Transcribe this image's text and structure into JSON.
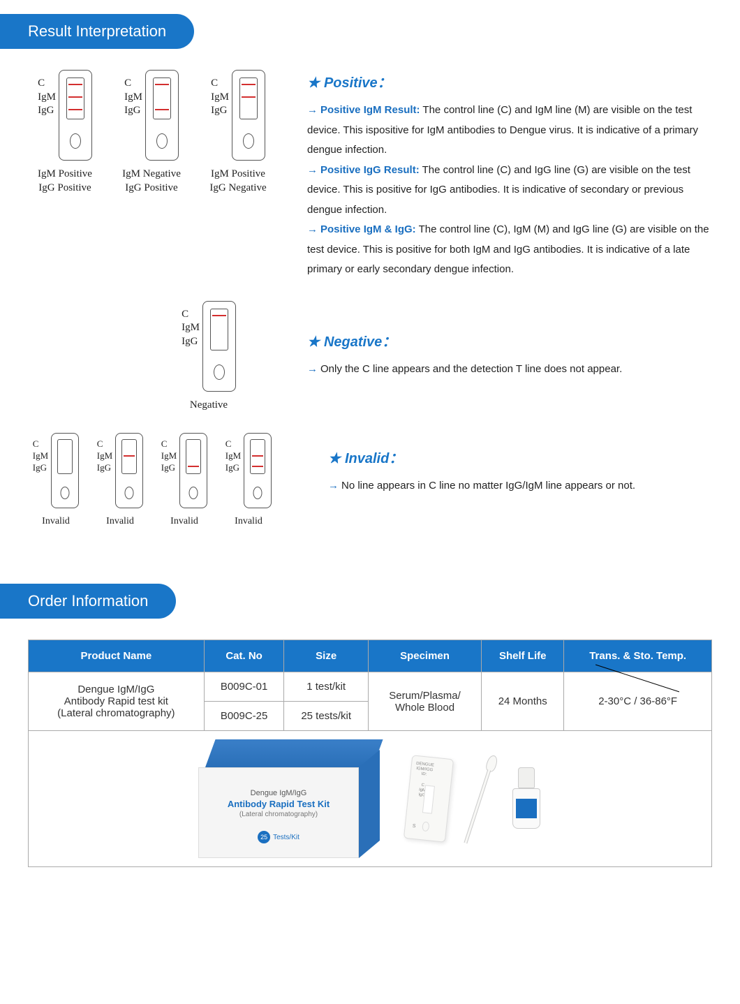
{
  "headers": {
    "result": "Result Interpretation",
    "order": "Order Information"
  },
  "lineLabels": {
    "c": "C",
    "igm": "IgM",
    "igg": "IgG"
  },
  "positive": {
    "title": "Positive：",
    "diagrams": [
      {
        "lines": [
          "C",
          "IgM",
          "IgG"
        ],
        "cap1": "IgM Positive",
        "cap2": "IgG Positive"
      },
      {
        "lines": [
          "C",
          "IgG"
        ],
        "cap1": "IgM Negative",
        "cap2": "IgG Positive"
      },
      {
        "lines": [
          "C",
          "IgM"
        ],
        "cap1": "IgM Positive",
        "cap2": "IgG Negative"
      }
    ],
    "items": [
      {
        "label": "Positive IgM Result:",
        "text": " The control line (C) and IgM line (M) are visible on the test device. This ispositive for IgM antibodies to Dengue virus. It is indicative of a primary dengue infection."
      },
      {
        "label": "Positive IgG Result:",
        "text": " The control line (C) and IgG line (G) are visible on the test device. This is positive for IgG antibodies. It is indicative of secondary or previous dengue infection."
      },
      {
        "label": "Positive IgM & IgG:",
        "text": " The control line (C), IgM (M) and IgG line (G) are visible on the test device. This is positive for both IgM and IgG antibodies. It is indicative of a late primary or early secondary dengue infection."
      }
    ]
  },
  "negative": {
    "title": "Negative：",
    "diagram": {
      "lines": [
        "C"
      ],
      "cap": "Negative"
    },
    "text": "Only the C line appears and the detection T line does not appear."
  },
  "invalid": {
    "title": "Invalid：",
    "text": "No line appears in C line no matter IgG/IgM line appears or not.",
    "diagrams": [
      {
        "lines": [],
        "cap": "Invalid"
      },
      {
        "lines": [
          "IgM"
        ],
        "cap": "Invalid"
      },
      {
        "lines": [
          "IgG"
        ],
        "cap": "Invalid"
      },
      {
        "lines": [
          "IgM",
          "IgG"
        ],
        "cap": "Invalid"
      }
    ]
  },
  "orderTable": {
    "columns": [
      "Product Name",
      "Cat. No",
      "Size",
      "Specimen",
      "Shelf Life",
      "Trans. & Sto. Temp."
    ],
    "productName": "Dengue IgM/IgG\nAntibody Rapid test kit\n(Lateral chromatography)",
    "rows": [
      {
        "cat": "B009C-01",
        "size": "1 test/kit"
      },
      {
        "cat": "B009C-25",
        "size": "25 tests/kit"
      }
    ],
    "specimen": "Serum/Plasma/\nWhole Blood",
    "shelf": "24 Months",
    "temp": "2-30°C / 36-86°F"
  },
  "kitBox": {
    "line1": "Dengue IgM/IgG",
    "line2": "Antibody Rapid Test Kit",
    "line3": "(Lateral chromatography)",
    "badgeNum": "25",
    "badgeText": "Tests/Kit"
  },
  "cassette": {
    "l1": "DENGUE",
    "l2": "IGM/IGG",
    "l3": "ID:",
    "s": "S"
  },
  "colors": {
    "primary": "#1976c8",
    "accent": "#1a6fc0",
    "red": "#d32f2f"
  }
}
